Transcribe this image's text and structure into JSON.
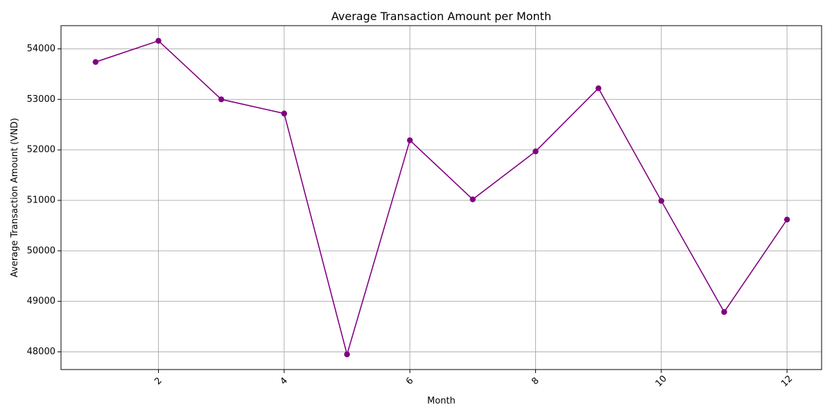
{
  "chart_data": {
    "type": "line",
    "title": "Average Transaction Amount per Month",
    "xlabel": "Month",
    "ylabel": "Average Transaction Amount (VND)",
    "x": [
      1,
      2,
      3,
      4,
      5,
      6,
      7,
      8,
      9,
      10,
      11,
      12
    ],
    "series": [
      {
        "values": [
          53740,
          54160,
          53000,
          52720,
          47950,
          52190,
          51020,
          51970,
          53220,
          50990,
          48790,
          50620
        ],
        "color": "#800080",
        "marker": "circle"
      }
    ],
    "xlim": [
      0.45,
      12.55
    ],
    "ylim": [
      47650,
      54460
    ],
    "xticks": [
      2,
      4,
      6,
      8,
      10,
      12
    ],
    "xtick_labels": [
      "2",
      "4",
      "6",
      "8",
      "10",
      "12"
    ],
    "xtick_rotation": -45,
    "yticks": [
      48000,
      49000,
      50000,
      51000,
      52000,
      53000,
      54000
    ],
    "ytick_labels": [
      "48000",
      "49000",
      "50000",
      "51000",
      "52000",
      "53000",
      "54000"
    ],
    "grid": true,
    "grid_color": "#b0b0b0"
  }
}
